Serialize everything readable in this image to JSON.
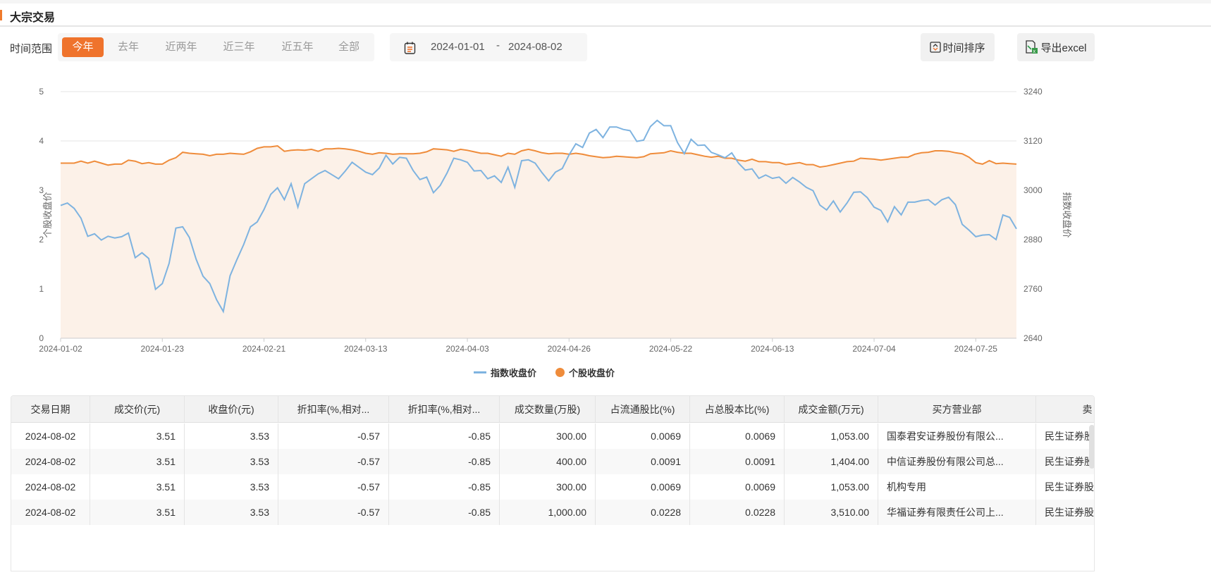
{
  "header": {
    "title": "大宗交易"
  },
  "filters": {
    "range_label": "时间范围",
    "ranges": [
      "今年",
      "去年",
      "近两年",
      "近三年",
      "近五年",
      "全部"
    ],
    "active_range": "今年",
    "start_date": "2024-01-01",
    "date_separator": "-",
    "end_date": "2024-08-02"
  },
  "toolbar": {
    "sort_label": "时间排序",
    "export_label": "导出excel"
  },
  "colors": {
    "accent": "#ef732c",
    "index_line": "#7eb3e0",
    "stock_line": "#ef8c3b",
    "stock_area": "#fcf1e8"
  },
  "chart_data": {
    "type": "line",
    "x_tick_labels": [
      "2024-01-02",
      "2024-01-23",
      "2024-02-21",
      "2024-03-13",
      "2024-04-03",
      "2024-04-26",
      "2024-05-22",
      "2024-06-13",
      "2024-07-04",
      "2024-07-25"
    ],
    "y_left": {
      "label": "个股收盘价",
      "ticks": [
        0,
        1,
        2,
        3,
        4,
        5
      ],
      "range": [
        0,
        5
      ]
    },
    "y_right": {
      "label": "指数收盘价",
      "ticks": [
        2640,
        2760,
        2880,
        3000,
        3120,
        3240
      ],
      "range": [
        2640,
        3240
      ]
    },
    "legend_position": "bottom",
    "grid": true,
    "series": [
      {
        "name": "指数收盘价",
        "axis": "right",
        "values": [
          2963,
          2969,
          2956,
          2932,
          2888,
          2894,
          2879,
          2888,
          2884,
          2887,
          2896,
          2836,
          2848,
          2834,
          2759,
          2773,
          2822,
          2908,
          2911,
          2885,
          2832,
          2791,
          2773,
          2734,
          2705,
          2792,
          2831,
          2868,
          2911,
          2923,
          2953,
          2990,
          3006,
          2977,
          3016,
          2959,
          3016,
          3028,
          3040,
          3048,
          3038,
          3028,
          3047,
          3068,
          3056,
          3044,
          3038,
          3054,
          3085,
          3064,
          3080,
          3078,
          3048,
          3026,
          3032,
          2994,
          3012,
          3042,
          3078,
          3074,
          3068,
          3047,
          3048,
          3028,
          3035,
          3019,
          3056,
          3007,
          3072,
          3074,
          3066,
          3043,
          3023,
          3044,
          3053,
          3086,
          3113,
          3104,
          3139,
          3148,
          3128,
          3154,
          3154,
          3148,
          3145,
          3119,
          3122,
          3155,
          3170,
          3157,
          3157,
          3116,
          3089,
          3124,
          3109,
          3110,
          3092,
          3086,
          3079,
          3091,
          3066,
          3049,
          3052,
          3029,
          3037,
          3029,
          3032,
          3017,
          3031,
          3020,
          3007,
          2999,
          2964,
          2952,
          2974,
          2947,
          2969,
          2995,
          2996,
          2982,
          2959,
          2951,
          2923,
          2960,
          2940,
          2971,
          2971,
          2975,
          2977,
          2964,
          2977,
          2983,
          2965,
          2917,
          2903,
          2887,
          2891,
          2892,
          2880,
          2940,
          2934,
          2906
        ]
      },
      {
        "name": "个股收盘价",
        "axis": "left",
        "values": [
          3.55,
          3.55,
          3.55,
          3.59,
          3.55,
          3.59,
          3.55,
          3.51,
          3.53,
          3.53,
          3.61,
          3.59,
          3.54,
          3.56,
          3.53,
          3.53,
          3.61,
          3.66,
          3.77,
          3.75,
          3.74,
          3.73,
          3.7,
          3.73,
          3.73,
          3.75,
          3.74,
          3.73,
          3.78,
          3.85,
          3.88,
          3.88,
          3.9,
          3.79,
          3.81,
          3.82,
          3.81,
          3.83,
          3.79,
          3.84,
          3.84,
          3.85,
          3.84,
          3.82,
          3.79,
          3.75,
          3.73,
          3.76,
          3.75,
          3.73,
          3.74,
          3.74,
          3.74,
          3.75,
          3.78,
          3.84,
          3.83,
          3.82,
          3.79,
          3.83,
          3.81,
          3.78,
          3.75,
          3.75,
          3.72,
          3.69,
          3.75,
          3.73,
          3.8,
          3.83,
          3.8,
          3.76,
          3.74,
          3.75,
          3.75,
          3.73,
          3.75,
          3.73,
          3.7,
          3.68,
          3.66,
          3.67,
          3.69,
          3.68,
          3.67,
          3.66,
          3.68,
          3.74,
          3.75,
          3.76,
          3.8,
          3.77,
          3.75,
          3.75,
          3.72,
          3.69,
          3.67,
          3.69,
          3.65,
          3.65,
          3.61,
          3.59,
          3.63,
          3.58,
          3.58,
          3.56,
          3.56,
          3.52,
          3.54,
          3.56,
          3.52,
          3.52,
          3.47,
          3.49,
          3.52,
          3.55,
          3.58,
          3.59,
          3.65,
          3.64,
          3.63,
          3.61,
          3.63,
          3.65,
          3.67,
          3.67,
          3.73,
          3.76,
          3.77,
          3.8,
          3.8,
          3.79,
          3.76,
          3.74,
          3.67,
          3.56,
          3.53,
          3.6,
          3.54,
          3.55,
          3.54,
          3.53
        ]
      }
    ]
  },
  "table": {
    "columns": [
      "交易日期",
      "成交价(元)",
      "收盘价(元)",
      "折扣率(%,相对...",
      "折扣率(%,相对...",
      "成交数量(万股)",
      "占流通股比(%)",
      "占总股本比(%)",
      "成交金额(万元)",
      "买方营业部",
      "卖"
    ],
    "rows": [
      [
        "2024-08-02",
        "3.51",
        "3.53",
        "-0.57",
        "-0.85",
        "300.00",
        "0.0069",
        "0.0069",
        "1,053.00",
        "国泰君安证券股份有限公...",
        "民生证券股"
      ],
      [
        "2024-08-02",
        "3.51",
        "3.53",
        "-0.57",
        "-0.85",
        "400.00",
        "0.0091",
        "0.0091",
        "1,404.00",
        "中信证券股份有限公司总...",
        "民生证券股"
      ],
      [
        "2024-08-02",
        "3.51",
        "3.53",
        "-0.57",
        "-0.85",
        "300.00",
        "0.0069",
        "0.0069",
        "1,053.00",
        "机构专用",
        "民生证券股"
      ],
      [
        "2024-08-02",
        "3.51",
        "3.53",
        "-0.57",
        "-0.85",
        "1,000.00",
        "0.0228",
        "0.0228",
        "3,510.00",
        "华福证券有限责任公司上...",
        "民生证券股"
      ]
    ]
  }
}
